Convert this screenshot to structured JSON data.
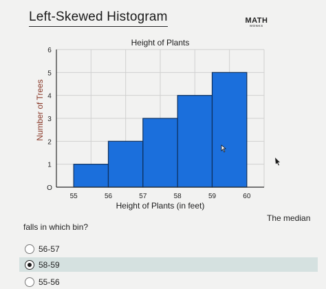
{
  "page": {
    "title": "Left-Skewed Histogram",
    "logo": {
      "line1": "MATH",
      "line2": "MONKS"
    },
    "median_text": "The median",
    "question_text": "falls in which bin?",
    "options": [
      {
        "label": "56-57",
        "selected": false
      },
      {
        "label": "58-59",
        "selected": true
      },
      {
        "label": "55-56",
        "selected": false
      }
    ]
  },
  "chart_data": {
    "type": "bar",
    "title": "Height of Plants",
    "xlabel": "Height of Plants (in feet)",
    "ylabel": "Number of Trees",
    "x_ticks": [
      "55",
      "56",
      "57",
      "58",
      "59",
      "60"
    ],
    "y_ticks": [
      "O",
      "1",
      "2",
      "3",
      "4",
      "5",
      "6"
    ],
    "bins": [
      {
        "from": 55,
        "to": 56,
        "value": 1
      },
      {
        "from": 56,
        "to": 57,
        "value": 2
      },
      {
        "from": 57,
        "to": 58,
        "value": 3
      },
      {
        "from": 58,
        "to": 59,
        "value": 4
      },
      {
        "from": 59,
        "to": 60,
        "value": 5
      }
    ],
    "xlim": [
      55,
      60
    ],
    "ylim": [
      0,
      6
    ],
    "grid": true,
    "colors": {
      "bar": "#1b6fdc",
      "bar_edge": "#0d2f5c",
      "grid": "#d0d0d0",
      "ylabel": "#8a3a2a"
    }
  }
}
